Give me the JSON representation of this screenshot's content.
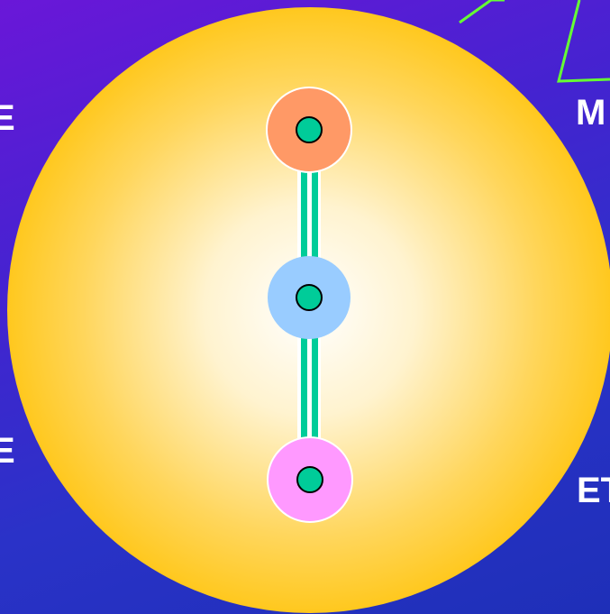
{
  "labels": {
    "left_top": "E",
    "left_bottom": "E",
    "right_top": "M",
    "right_bottom": "ET"
  },
  "colors": {
    "background_top": "#6a17d8",
    "background_bottom": "#1e2fb8",
    "sphere_edge": "#ffc81e",
    "sphere_center": "#ffffff",
    "node_top": "#ff9966",
    "node_middle": "#99ccff",
    "node_bottom": "#ff99ff",
    "node_core": "#00cc99",
    "link_stripe": "#00cc99",
    "node_outline": "#ffffff",
    "outline_shape": "#66ff33"
  },
  "nodes": [
    {
      "name": "top-node",
      "color": "#ff9966"
    },
    {
      "name": "middle-node",
      "color": "#99ccff"
    },
    {
      "name": "bottom-node",
      "color": "#ff99ff"
    }
  ]
}
